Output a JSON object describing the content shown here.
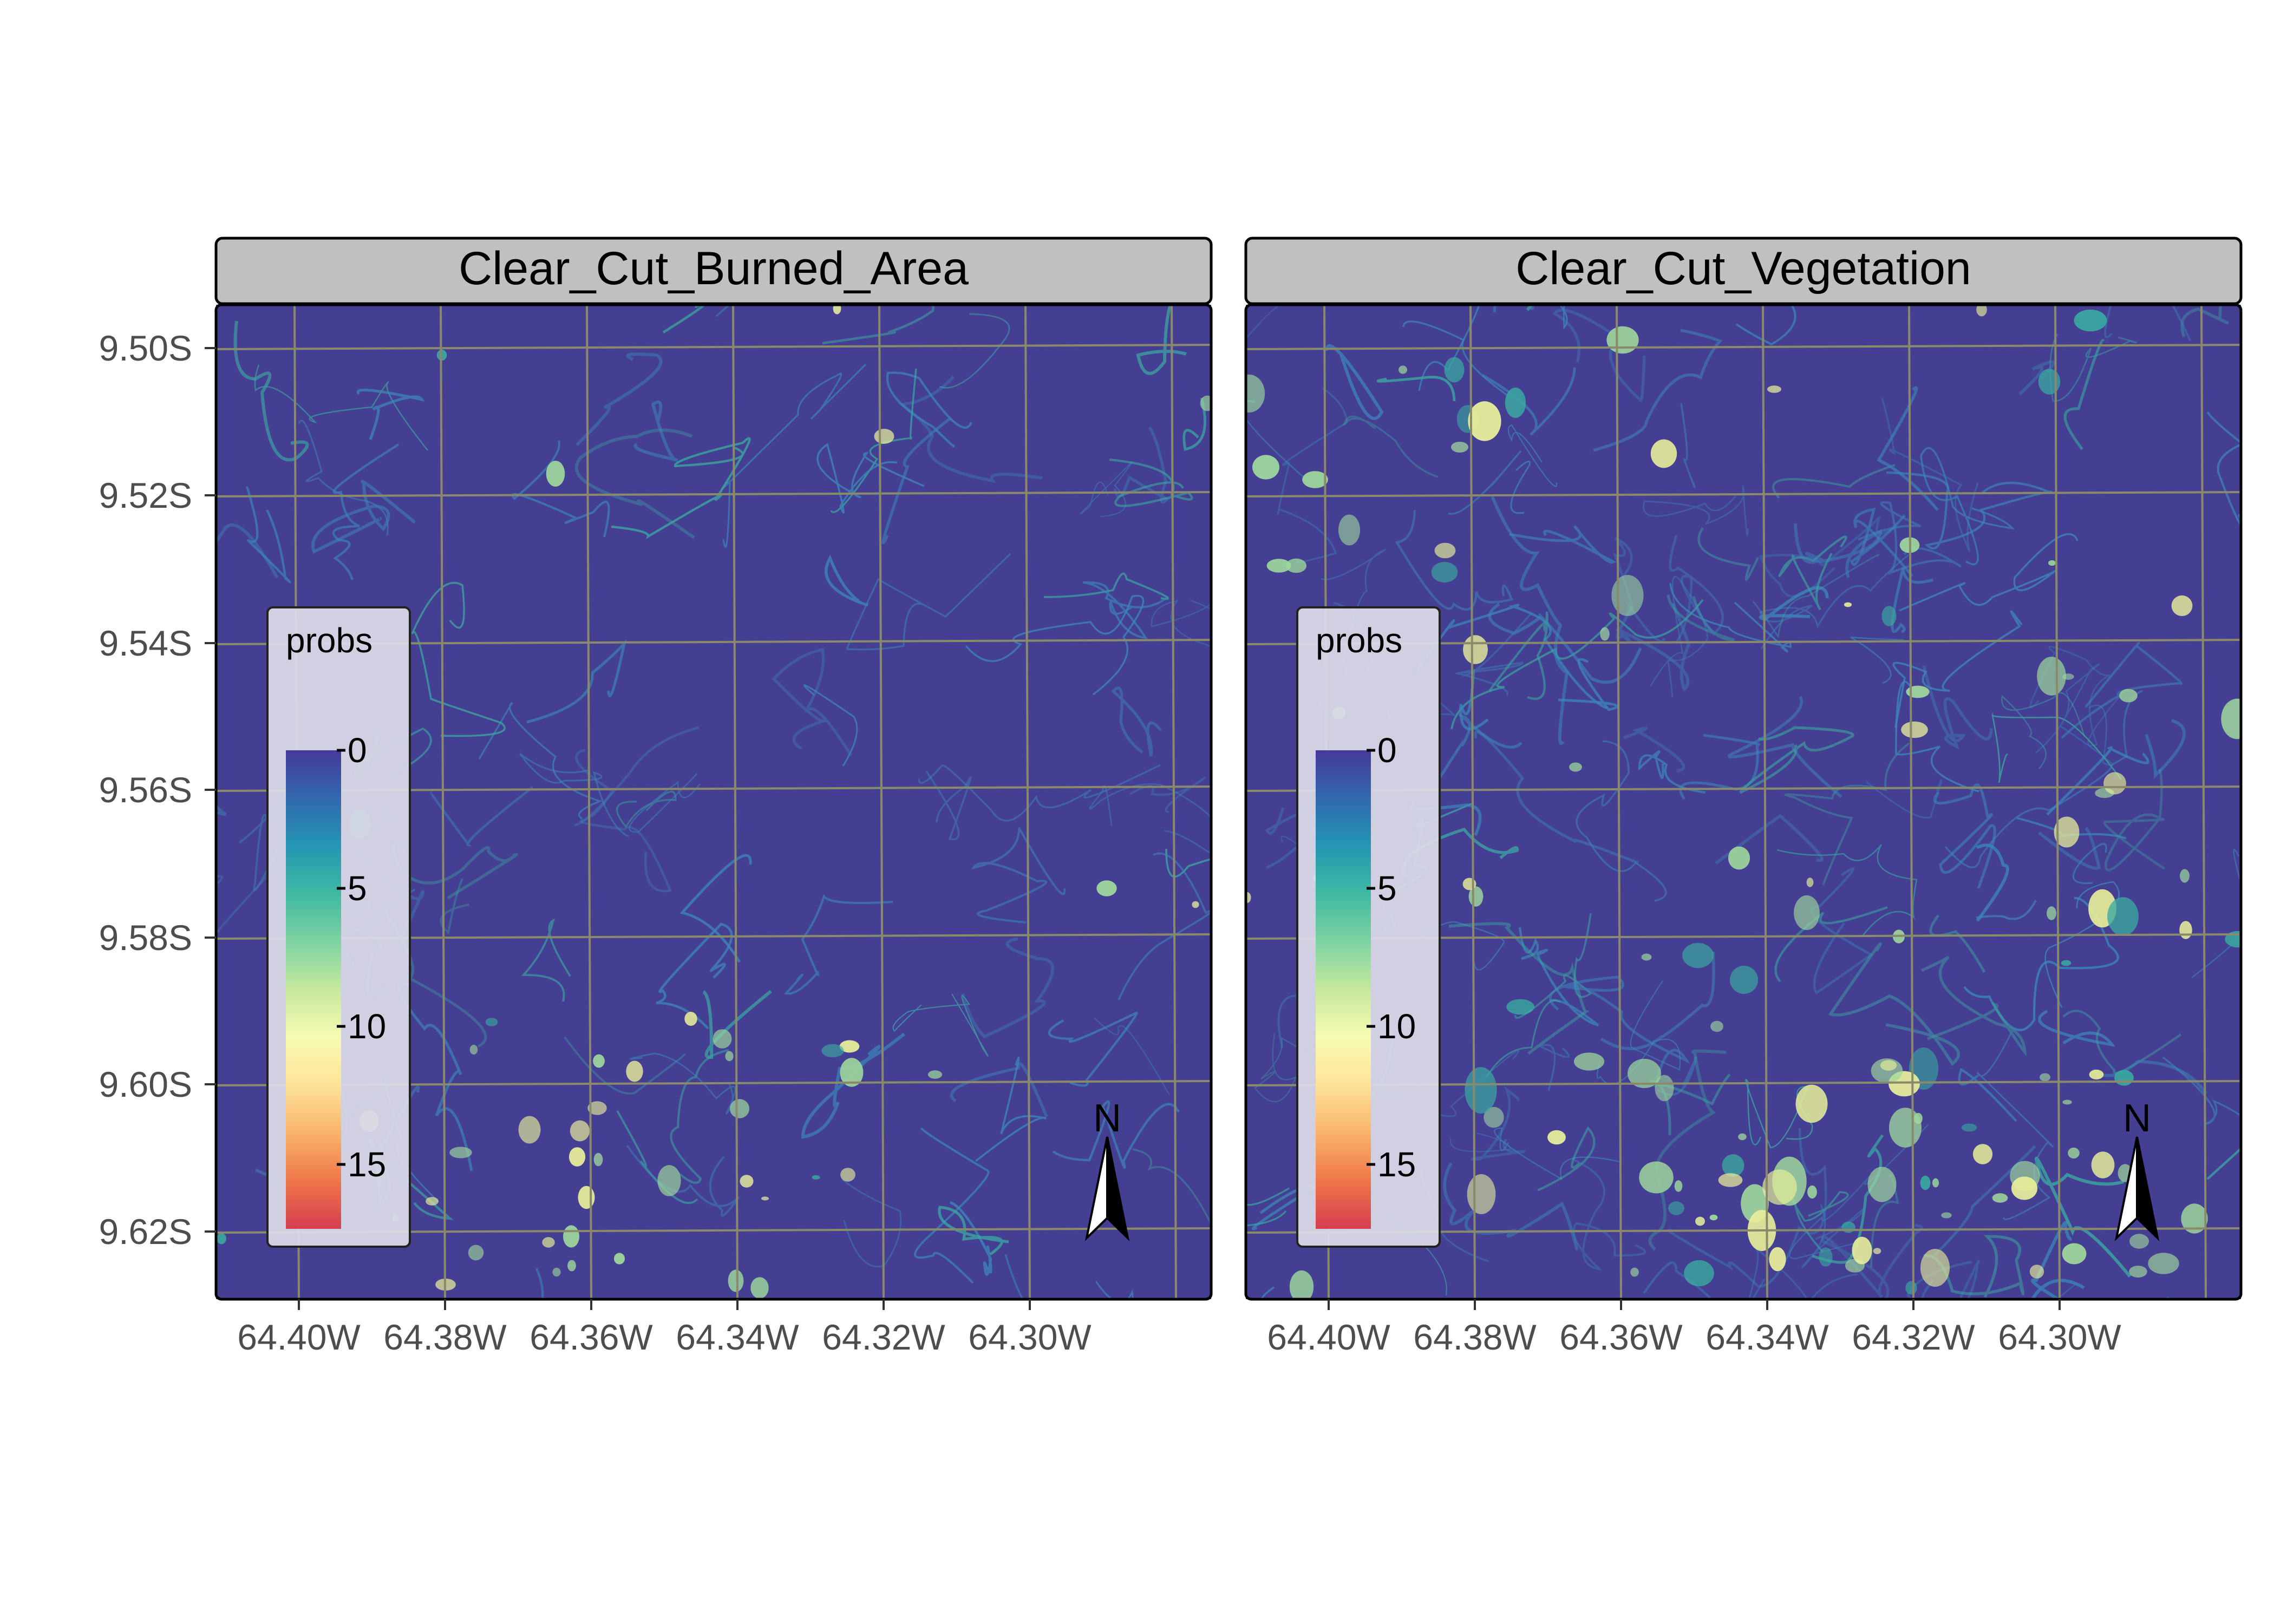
{
  "legend_title": "probs",
  "legend_ticks": [
    "0",
    "5",
    "10",
    "15"
  ],
  "legend_colors": [
    "#46399A",
    "#3268AE",
    "#2496B4",
    "#3FB9A2",
    "#7ED3A2",
    "#C5E99D",
    "#F8FBB2",
    "#FDE398",
    "#F9B36A",
    "#EF7648",
    "#D53E4F"
  ],
  "north_label": "N",
  "panels": [
    {
      "title": "Clear_Cut_Burned_Area",
      "density": "low"
    },
    {
      "title": "Clear_Cut_Vegetation",
      "density": "high"
    }
  ],
  "y_ticks": [
    "9.50S",
    "9.52S",
    "9.54S",
    "9.56S",
    "9.58S",
    "9.60S",
    "9.62S"
  ],
  "x_ticks": [
    "64.40W",
    "64.38W",
    "64.36W",
    "64.34W",
    "64.32W",
    "64.30W"
  ],
  "colors": {
    "map_background": "#453F93",
    "grid": "#8A8A6A",
    "strip": "#C0C0C0",
    "legend_bg": "#DCDCE8",
    "feature_cyan": "#3C86B8",
    "feature_teal": "#3AA8A0",
    "feature_green": "#9ED79C",
    "feature_yellow": "#E8EE9A"
  }
}
